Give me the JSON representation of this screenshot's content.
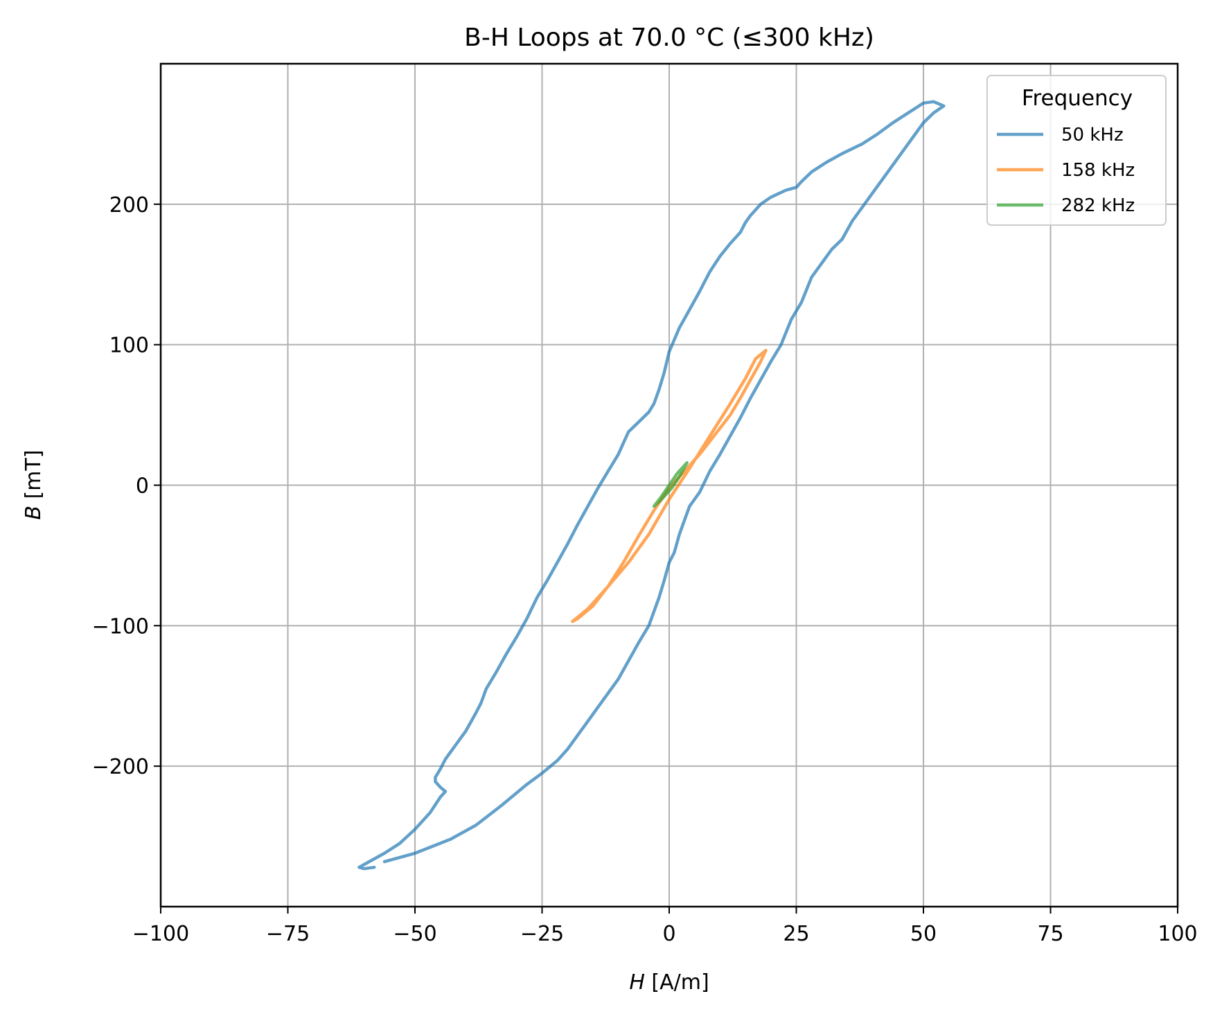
{
  "chart_data": {
    "type": "line",
    "title": "B-H Loops at 70.0 °C (≤300 kHz)",
    "xlabel_var": "H",
    "xlabel_unit": " [A/m]",
    "ylabel_var": "B",
    "ylabel_unit": " [mT]",
    "xlim": [
      -100,
      100
    ],
    "ylim": [
      -300,
      300
    ],
    "x_ticks": [
      -100,
      -75,
      -50,
      -25,
      0,
      25,
      50,
      75,
      100
    ],
    "x_tick_labels": [
      "−100",
      "−75",
      "−50",
      "−25",
      "0",
      "25",
      "50",
      "75",
      "100"
    ],
    "y_ticks": [
      -200,
      -100,
      0,
      100,
      200
    ],
    "y_tick_labels": [
      "−200",
      "−100",
      "0",
      "100",
      "200"
    ],
    "grid": true,
    "legend": {
      "title": "Frequency",
      "placement": "top-right",
      "entries": [
        "50 kHz",
        "158 kHz",
        "282 kHz"
      ]
    },
    "series": [
      {
        "name": "50 kHz",
        "color": "#1f77b4",
        "points": [
          [
            -56,
            -268
          ],
          [
            -50,
            -262
          ],
          [
            -43,
            -252
          ],
          [
            -38,
            -242
          ],
          [
            -33,
            -228
          ],
          [
            -28,
            -213
          ],
          [
            -25,
            -205
          ],
          [
            -22,
            -196
          ],
          [
            -20,
            -188
          ],
          [
            -18,
            -178
          ],
          [
            -16,
            -168
          ],
          [
            -14,
            -158
          ],
          [
            -12,
            -148
          ],
          [
            -10,
            -138
          ],
          [
            -8,
            -125
          ],
          [
            -6,
            -112
          ],
          [
            -4,
            -100
          ],
          [
            -3,
            -90
          ],
          [
            -2,
            -80
          ],
          [
            -1,
            -68
          ],
          [
            0,
            -55
          ],
          [
            1,
            -48
          ],
          [
            2,
            -35
          ],
          [
            3,
            -25
          ],
          [
            4,
            -15
          ],
          [
            6,
            -5
          ],
          [
            8,
            10
          ],
          [
            10,
            22
          ],
          [
            12,
            35
          ],
          [
            14,
            48
          ],
          [
            16,
            62
          ],
          [
            18,
            75
          ],
          [
            20,
            88
          ],
          [
            22,
            100
          ],
          [
            24,
            118
          ],
          [
            26,
            130
          ],
          [
            28,
            148
          ],
          [
            30,
            158
          ],
          [
            32,
            168
          ],
          [
            34,
            175
          ],
          [
            36,
            188
          ],
          [
            38,
            198
          ],
          [
            40,
            208
          ],
          [
            42,
            218
          ],
          [
            44,
            228
          ],
          [
            46,
            238
          ],
          [
            48,
            248
          ],
          [
            50,
            258
          ],
          [
            52,
            265
          ],
          [
            54,
            270
          ],
          [
            52,
            273
          ],
          [
            50,
            272
          ],
          [
            47,
            265
          ],
          [
            44,
            258
          ],
          [
            41,
            250
          ],
          [
            38,
            243
          ],
          [
            34,
            236
          ],
          [
            31,
            230
          ],
          [
            28,
            223
          ],
          [
            26,
            216
          ],
          [
            25,
            212
          ],
          [
            23,
            210
          ],
          [
            20,
            205
          ],
          [
            18,
            200
          ],
          [
            16,
            192
          ],
          [
            15,
            187
          ],
          [
            14,
            180
          ],
          [
            12,
            172
          ],
          [
            10,
            163
          ],
          [
            8,
            152
          ],
          [
            6,
            138
          ],
          [
            4,
            125
          ],
          [
            2,
            112
          ],
          [
            0,
            95
          ],
          [
            -1,
            80
          ],
          [
            -2,
            68
          ],
          [
            -3,
            58
          ],
          [
            -4,
            52
          ],
          [
            -6,
            45
          ],
          [
            -8,
            38
          ],
          [
            -9,
            30
          ],
          [
            -10,
            22
          ],
          [
            -12,
            10
          ],
          [
            -14,
            -2
          ],
          [
            -16,
            -15
          ],
          [
            -18,
            -28
          ],
          [
            -20,
            -42
          ],
          [
            -22,
            -55
          ],
          [
            -24,
            -68
          ],
          [
            -26,
            -80
          ],
          [
            -28,
            -95
          ],
          [
            -30,
            -108
          ],
          [
            -32,
            -120
          ],
          [
            -34,
            -133
          ],
          [
            -36,
            -145
          ],
          [
            -37,
            -155
          ],
          [
            -38,
            -162
          ],
          [
            -40,
            -175
          ],
          [
            -42,
            -185
          ],
          [
            -44,
            -195
          ],
          [
            -45,
            -202
          ],
          [
            -46,
            -208
          ],
          [
            -46,
            -211
          ],
          [
            -45,
            -215
          ],
          [
            -44,
            -218
          ],
          [
            -45,
            -222
          ],
          [
            -47,
            -233
          ],
          [
            -50,
            -245
          ],
          [
            -53,
            -255
          ],
          [
            -56,
            -262
          ],
          [
            -59,
            -268
          ],
          [
            -61,
            -272
          ],
          [
            -60,
            -273
          ],
          [
            -58,
            -272
          ]
        ]
      },
      {
        "name": "158 kHz",
        "color": "#ff7f0e",
        "points": [
          [
            -19,
            -97
          ],
          [
            -16,
            -88
          ],
          [
            -12,
            -72
          ],
          [
            -8,
            -55
          ],
          [
            -4,
            -35
          ],
          [
            0,
            -10
          ],
          [
            4,
            12
          ],
          [
            8,
            35
          ],
          [
            12,
            58
          ],
          [
            15,
            76
          ],
          [
            17,
            90
          ],
          [
            19,
            96
          ],
          [
            18,
            88
          ],
          [
            16,
            75
          ],
          [
            14,
            62
          ],
          [
            12,
            50
          ],
          [
            9,
            36
          ],
          [
            6,
            22
          ],
          [
            3,
            10
          ],
          [
            0,
            -2
          ],
          [
            -3,
            -18
          ],
          [
            -6,
            -36
          ],
          [
            -9,
            -55
          ],
          [
            -12,
            -72
          ],
          [
            -15,
            -86
          ],
          [
            -18,
            -95
          ],
          [
            -19,
            -97
          ]
        ]
      },
      {
        "name": "282 kHz",
        "color": "#2ca02c",
        "points": [
          [
            -3,
            -15
          ],
          [
            -1.5,
            -8
          ],
          [
            0,
            0
          ],
          [
            1.5,
            8
          ],
          [
            3.5,
            16
          ],
          [
            2,
            6
          ],
          [
            0.5,
            -2
          ],
          [
            -1.5,
            -10
          ],
          [
            -3,
            -15
          ]
        ]
      }
    ]
  }
}
